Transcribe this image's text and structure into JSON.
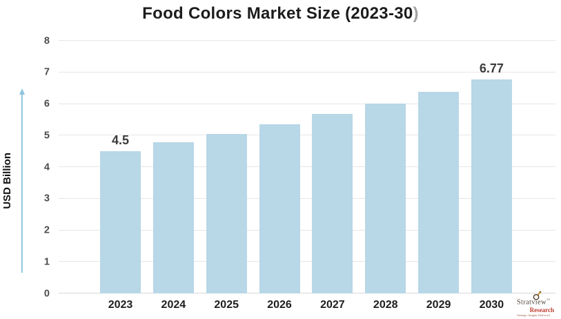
{
  "header": {
    "title_main": "Food Colors Market Size (2023-30",
    "title_paren": ")"
  },
  "chart_data": {
    "type": "bar",
    "title": "Food Colors Market Size (2023-30)",
    "categories": [
      "2023",
      "2024",
      "2025",
      "2026",
      "2027",
      "2028",
      "2029",
      "2030"
    ],
    "values": [
      4.5,
      4.78,
      5.06,
      5.36,
      5.68,
      6.02,
      6.38,
      6.77
    ],
    "data_labels": [
      "4.5",
      "",
      "",
      "",
      "",
      "",
      "",
      "6.77"
    ],
    "xlabel": "",
    "ylabel": "USD Billion",
    "ylim": [
      0,
      8
    ],
    "yticks": [
      0,
      1,
      2,
      3,
      4,
      5,
      6,
      7,
      8
    ],
    "grid": true,
    "legend": false,
    "bar_color": "#b8d7e7"
  },
  "colors": {
    "bar": "#b8d7e7",
    "arrow": "#8fc4de",
    "gridline": "#e6e6e6",
    "zero_line": "#d9d9d9",
    "title": "#1c1c1c",
    "title_paren": "#a2a2a2",
    "y_tick_label": "#4c4c4c",
    "x_tick_label": "#1d1d1d",
    "value_label": "#3b3b3b",
    "logo_red": "#c0392b",
    "logo_brown": "#55493f",
    "logo_gold": "#c9922e"
  },
  "logo": {
    "brand": "Stratview",
    "tm": "™",
    "research": "Research",
    "tagline": "Strategic Insights Delivered"
  }
}
